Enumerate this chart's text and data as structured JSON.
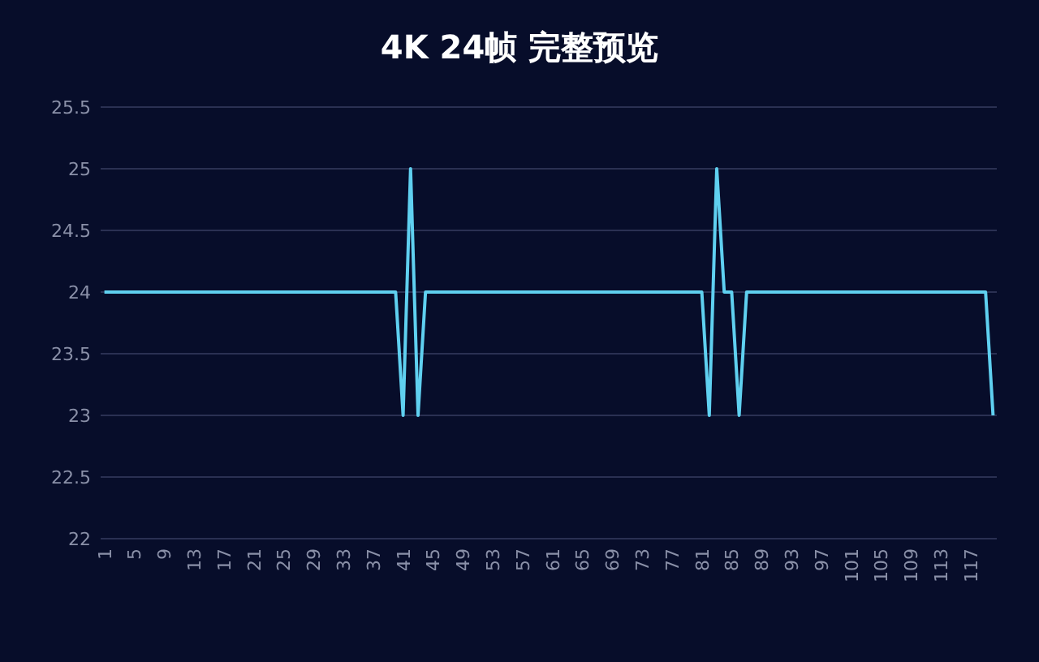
{
  "chart_data": {
    "type": "line",
    "title": "4K 24帧 完整预览",
    "categories": [
      "1",
      null,
      null,
      null,
      "5",
      null,
      null,
      null,
      "9",
      null,
      null,
      null,
      "13",
      null,
      null,
      null,
      "17",
      null,
      null,
      null,
      "21",
      null,
      null,
      null,
      "25",
      null,
      null,
      null,
      "29",
      null,
      null,
      null,
      "33",
      null,
      null,
      null,
      "37",
      null,
      null,
      null,
      "41",
      null,
      null,
      null,
      "45",
      null,
      null,
      null,
      "49",
      null,
      null,
      null,
      "53",
      null,
      null,
      null,
      "57",
      null,
      null,
      null,
      "61",
      null,
      null,
      null,
      "65",
      null,
      null,
      null,
      "69",
      null,
      null,
      null,
      "73",
      null,
      null,
      null,
      "77",
      null,
      null,
      null,
      "81",
      null,
      null,
      null,
      "85",
      null,
      null,
      null,
      "89",
      null,
      null,
      null,
      "93",
      null,
      null,
      null,
      "97",
      null,
      null,
      null,
      "101",
      null,
      null,
      null,
      "105",
      null,
      null,
      null,
      "109",
      null,
      null,
      null,
      "113",
      null,
      null,
      null,
      "117",
      null,
      null,
      null
    ],
    "values": [
      24,
      24,
      24,
      24,
      24,
      24,
      24,
      24,
      24,
      24,
      24,
      24,
      24,
      24,
      24,
      24,
      24,
      24,
      24,
      24,
      24,
      24,
      24,
      24,
      24,
      24,
      24,
      24,
      24,
      24,
      24,
      24,
      24,
      24,
      24,
      24,
      24,
      24,
      24,
      24,
      23,
      25,
      23,
      24,
      24,
      24,
      24,
      24,
      24,
      24,
      24,
      24,
      24,
      24,
      24,
      24,
      24,
      24,
      24,
      24,
      24,
      24,
      24,
      24,
      24,
      24,
      24,
      24,
      24,
      24,
      24,
      24,
      24,
      24,
      24,
      24,
      24,
      24,
      24,
      24,
      24,
      23,
      25,
      24,
      24,
      23,
      24,
      24,
      24,
      24,
      24,
      24,
      24,
      24,
      24,
      24,
      24,
      24,
      24,
      24,
      24,
      24,
      24,
      24,
      24,
      24,
      24,
      24,
      24,
      24,
      24,
      24,
      24,
      24,
      24,
      24,
      24,
      24,
      24,
      23
    ],
    "color": "#5fd0f0",
    "ylim": [
      22,
      25.5
    ],
    "yticks": [
      22,
      22.5,
      23,
      23.5,
      24,
      24.5,
      25,
      25.5
    ],
    "grid": "y"
  }
}
